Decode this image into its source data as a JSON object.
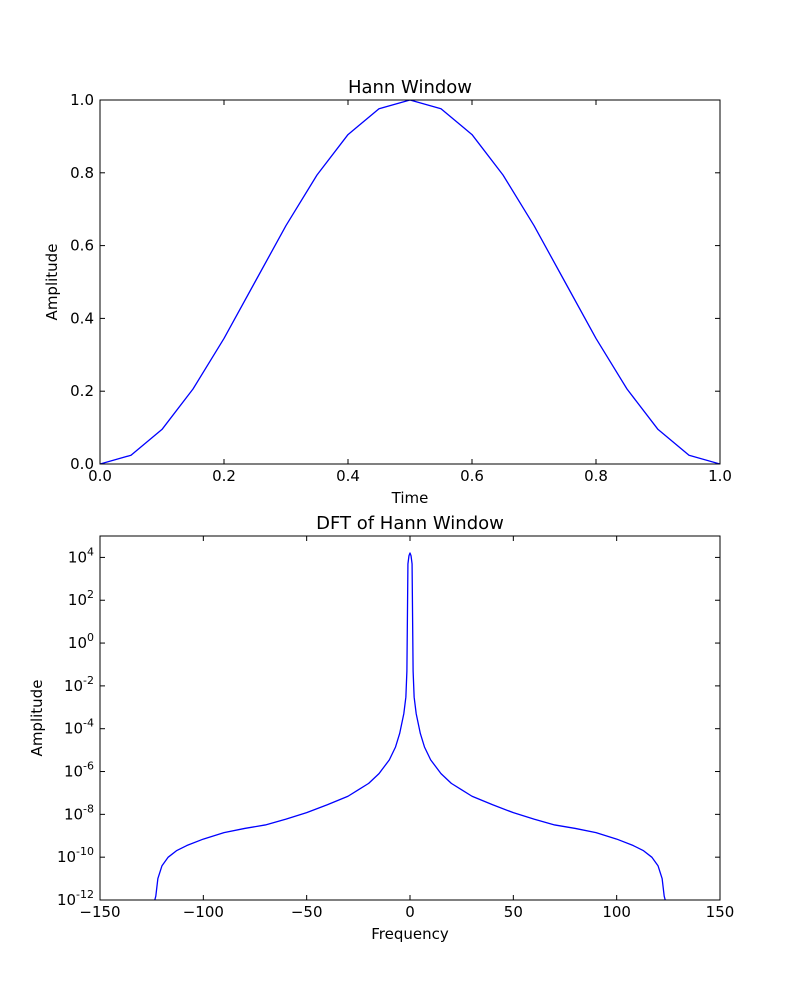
{
  "chart_data": [
    {
      "type": "line",
      "title": "Hann Window",
      "xlabel": "Time",
      "ylabel": "Amplitude",
      "xlim": [
        0.0,
        1.0
      ],
      "ylim": [
        0.0,
        1.0
      ],
      "xticks": [
        "0.0",
        "0.2",
        "0.4",
        "0.6",
        "0.8",
        "1.0"
      ],
      "yticks": [
        "0.0",
        "0.2",
        "0.4",
        "0.6",
        "0.8",
        "1.0"
      ],
      "xtick_values": [
        0.0,
        0.2,
        0.4,
        0.6,
        0.8,
        1.0
      ],
      "ytick_values": [
        0.0,
        0.2,
        0.4,
        0.6,
        0.8,
        1.0
      ],
      "grid": false,
      "series": [
        {
          "color": "#0000ff",
          "x": [
            0.0,
            0.05,
            0.1,
            0.15,
            0.2,
            0.25,
            0.3,
            0.35,
            0.4,
            0.45,
            0.5,
            0.55,
            0.6,
            0.65,
            0.7,
            0.75,
            0.8,
            0.85,
            0.9,
            0.95,
            1.0
          ],
          "y": [
            0.0,
            0.024,
            0.095,
            0.206,
            0.345,
            0.5,
            0.655,
            0.794,
            0.905,
            0.976,
            1.0,
            0.976,
            0.905,
            0.794,
            0.655,
            0.5,
            0.345,
            0.206,
            0.095,
            0.024,
            0.0
          ]
        }
      ]
    },
    {
      "type": "line",
      "title": "DFT of Hann Window",
      "xlabel": "Frequency",
      "ylabel": "Amplitude",
      "xlim": [
        -150,
        150
      ],
      "ylim": [
        1e-12,
        100000.0
      ],
      "yscale": "log",
      "xticks": [
        "−150",
        "−100",
        "−50",
        "0",
        "50",
        "100",
        "150"
      ],
      "xtick_values": [
        -150,
        -100,
        -50,
        0,
        50,
        100,
        150
      ],
      "yticks": [
        {
          "base": "10",
          "exp": "-12"
        },
        {
          "base": "10",
          "exp": "-10"
        },
        {
          "base": "10",
          "exp": "-8"
        },
        {
          "base": "10",
          "exp": "-6"
        },
        {
          "base": "10",
          "exp": "-4"
        },
        {
          "base": "10",
          "exp": "-2"
        },
        {
          "base": "10",
          "exp": "0"
        },
        {
          "base": "10",
          "exp": "2"
        },
        {
          "base": "10",
          "exp": "4"
        }
      ],
      "ytick_exponents": [
        -12,
        -10,
        -8,
        -6,
        -4,
        -2,
        0,
        2,
        4
      ],
      "grid": false,
      "series": [
        {
          "color": "#0000ff",
          "x": [
            -123.5,
            -123,
            -122,
            -120,
            -117,
            -113,
            -108,
            -100,
            -90,
            -80,
            -70,
            -60,
            -50,
            -40,
            -30,
            -25,
            -20,
            -15,
            -10,
            -7,
            -5,
            -3,
            -2,
            -1.5,
            -1,
            -0.5,
            0,
            0.5,
            1,
            1.5,
            2,
            3,
            5,
            7,
            10,
            15,
            20,
            25,
            30,
            40,
            50,
            60,
            70,
            80,
            90,
            100,
            108,
            113,
            117,
            120,
            122,
            123,
            123.5
          ],
          "y": [
            1e-12,
            1.5e-12,
            1e-11,
            4e-11,
            1e-10,
            2e-10,
            3.5e-10,
            7e-10,
            1.4e-09,
            2.2e-09,
            3.2e-09,
            6e-09,
            1.2e-08,
            2.8e-08,
            7e-08,
            1.4e-07,
            2.8e-07,
            8e-07,
            3.5e-06,
            1.4e-05,
            6e-05,
            0.0005,
            0.003,
            0.05,
            5000.0,
            12000.0,
            16000.0,
            12000.0,
            5000.0,
            0.05,
            0.003,
            0.0005,
            6e-05,
            1.4e-05,
            3.5e-06,
            8e-07,
            2.8e-07,
            1.4e-07,
            7e-08,
            2.8e-08,
            1.2e-08,
            6e-09,
            3.2e-09,
            2.2e-09,
            1.4e-09,
            7e-10,
            3.5e-10,
            2e-10,
            1e-10,
            4e-11,
            1e-11,
            1.5e-12,
            1e-12
          ]
        }
      ]
    }
  ]
}
